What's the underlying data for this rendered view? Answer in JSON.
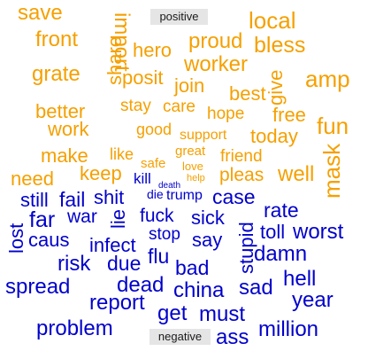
{
  "chart_data": {
    "type": "wordcloud",
    "groups": [
      {
        "name": "positive",
        "color": "#f5a000",
        "words": [
          {
            "text": "save",
            "size": 10
          },
          {
            "text": "front",
            "size": 10
          },
          {
            "text": "grate",
            "size": 10
          },
          {
            "text": "better",
            "size": 9
          },
          {
            "text": "work",
            "size": 9
          },
          {
            "text": "make",
            "size": 9
          },
          {
            "text": "need",
            "size": 9
          },
          {
            "text": "import",
            "size": 10
          },
          {
            "text": "share",
            "size": 9
          },
          {
            "text": "hero",
            "size": 9
          },
          {
            "text": "posit",
            "size": 9
          },
          {
            "text": "stay",
            "size": 8
          },
          {
            "text": "good",
            "size": 8
          },
          {
            "text": "like",
            "size": 8
          },
          {
            "text": "keep",
            "size": 9
          },
          {
            "text": "safe",
            "size": 7
          },
          {
            "text": "great",
            "size": 7
          },
          {
            "text": "love",
            "size": 6
          },
          {
            "text": "help",
            "size": 5
          },
          {
            "text": "proud",
            "size": 10
          },
          {
            "text": "worker",
            "size": 10
          },
          {
            "text": "join",
            "size": 9
          },
          {
            "text": "care",
            "size": 8
          },
          {
            "text": "support",
            "size": 7
          },
          {
            "text": "hope",
            "size": 8
          },
          {
            "text": "friend",
            "size": 8
          },
          {
            "text": "pleas",
            "size": 9
          },
          {
            "text": "local",
            "size": 10
          },
          {
            "text": "bless",
            "size": 10
          },
          {
            "text": "give",
            "size": 9
          },
          {
            "text": "amp",
            "size": 10
          },
          {
            "text": "best",
            "size": 9
          },
          {
            "text": "free",
            "size": 9
          },
          {
            "text": "today",
            "size": 9
          },
          {
            "text": "fun",
            "size": 10
          },
          {
            "text": "mask",
            "size": 10
          },
          {
            "text": "well",
            "size": 10
          }
        ]
      },
      {
        "name": "negative",
        "color": "#0000cc",
        "words": [
          {
            "text": "kill",
            "size": 7
          },
          {
            "text": "death",
            "size": 4
          },
          {
            "text": "die",
            "size": 6
          },
          {
            "text": "trump",
            "size": 7
          },
          {
            "text": "still",
            "size": 9
          },
          {
            "text": "fail",
            "size": 10
          },
          {
            "text": "shit",
            "size": 10
          },
          {
            "text": "case",
            "size": 10
          },
          {
            "text": "lost",
            "size": 10
          },
          {
            "text": "far",
            "size": 10
          },
          {
            "text": "war",
            "size": 9
          },
          {
            "text": "lie",
            "size": 9
          },
          {
            "text": "fuck",
            "size": 9
          },
          {
            "text": "sick",
            "size": 9
          },
          {
            "text": "stupid",
            "size": 10
          },
          {
            "text": "rate",
            "size": 10
          },
          {
            "text": "caus",
            "size": 9
          },
          {
            "text": "infect",
            "size": 9
          },
          {
            "text": "stop",
            "size": 8
          },
          {
            "text": "say",
            "size": 9
          },
          {
            "text": "toll",
            "size": 10
          },
          {
            "text": "worst",
            "size": 10
          },
          {
            "text": "risk",
            "size": 10
          },
          {
            "text": "due",
            "size": 10
          },
          {
            "text": "flu",
            "size": 10
          },
          {
            "text": "bad",
            "size": 10
          },
          {
            "text": "damn",
            "size": 10
          },
          {
            "text": "spread",
            "size": 10
          },
          {
            "text": "dead",
            "size": 10
          },
          {
            "text": "china",
            "size": 10
          },
          {
            "text": "sad",
            "size": 10
          },
          {
            "text": "hell",
            "size": 10
          },
          {
            "text": "report",
            "size": 10
          },
          {
            "text": "get",
            "size": 10
          },
          {
            "text": "must",
            "size": 10
          },
          {
            "text": "year",
            "size": 10
          },
          {
            "text": "problem",
            "size": 10
          },
          {
            "text": "ass",
            "size": 10
          },
          {
            "text": "million",
            "size": 10
          }
        ]
      }
    ]
  }
}
